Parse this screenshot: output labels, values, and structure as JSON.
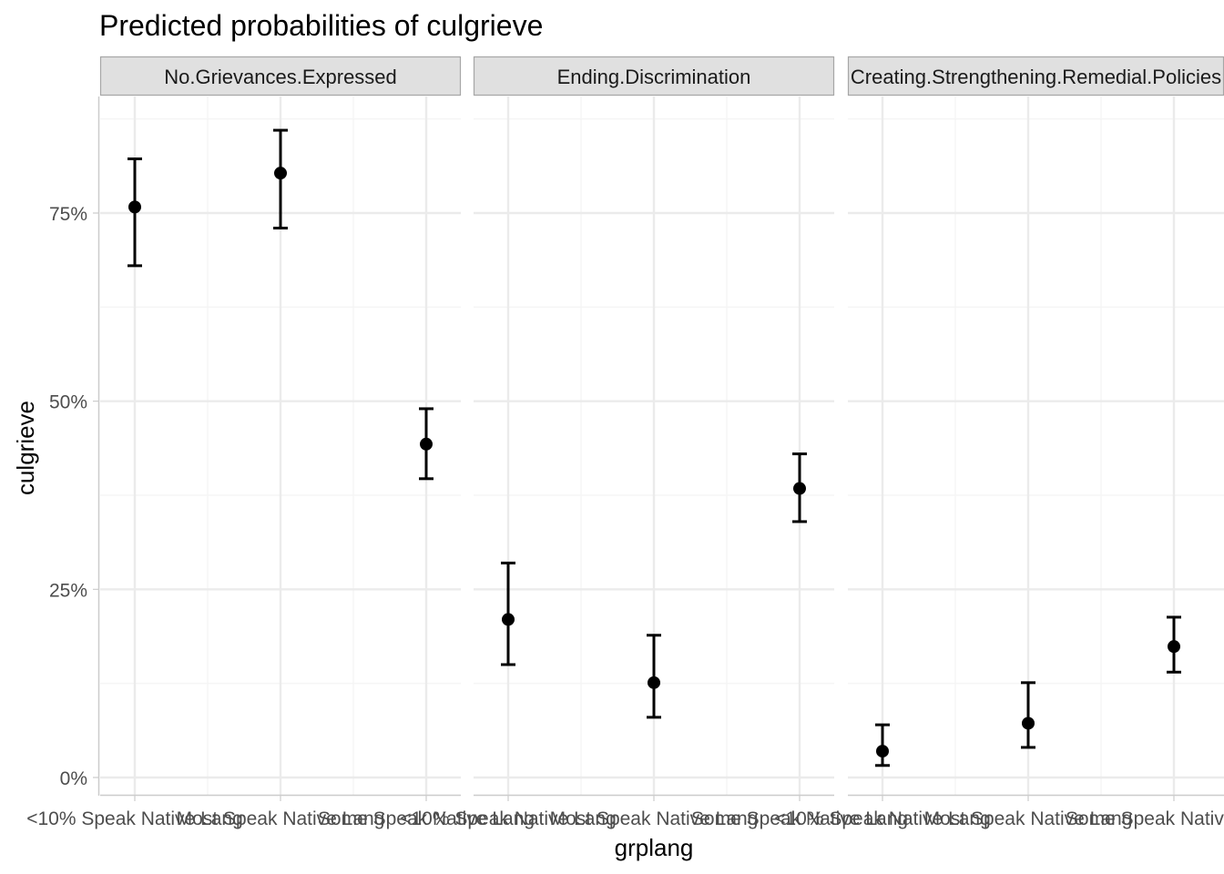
{
  "chart_data": {
    "type": "scatter",
    "title": "Predicted probabilities of culgrieve",
    "xlabel": "grplang",
    "ylabel": "culgrieve",
    "ylim": [
      0,
      0.9
    ],
    "y_ticks": [
      0,
      0.25,
      0.5,
      0.75
    ],
    "y_tick_labels": [
      "0%",
      "25%",
      "50%",
      "75%"
    ],
    "grid": true,
    "categories": [
      "<10% Speak Native Lang",
      "Most Speak Native Lang",
      "Some Speak Native Lang"
    ],
    "panels": [
      {
        "label": "No.Grievances.Expressed",
        "points": [
          {
            "x": "<10% Speak Native Lang",
            "y": 0.758,
            "ymin": 0.68,
            "ymax": 0.822
          },
          {
            "x": "Most Speak Native Lang",
            "y": 0.803,
            "ymin": 0.73,
            "ymax": 0.86
          },
          {
            "x": "Some Speak Native Lang",
            "y": 0.443,
            "ymin": 0.397,
            "ymax": 0.49
          }
        ]
      },
      {
        "label": "Ending.Discrimination",
        "points": [
          {
            "x": "<10% Speak Native Lang",
            "y": 0.21,
            "ymin": 0.15,
            "ymax": 0.285
          },
          {
            "x": "Most Speak Native Lang",
            "y": 0.126,
            "ymin": 0.08,
            "ymax": 0.189
          },
          {
            "x": "Some Speak Native Lang",
            "y": 0.384,
            "ymin": 0.34,
            "ymax": 0.43
          }
        ]
      },
      {
        "label": "Creating.Strengthening.Remedial.Policies",
        "points": [
          {
            "x": "<10% Speak Native Lang",
            "y": 0.035,
            "ymin": 0.016,
            "ymax": 0.07
          },
          {
            "x": "Most Speak Native Lang",
            "y": 0.072,
            "ymin": 0.04,
            "ymax": 0.126
          },
          {
            "x": "Some Speak Native Lang",
            "y": 0.174,
            "ymin": 0.14,
            "ymax": 0.213
          }
        ]
      }
    ],
    "colors": {
      "point": "#000000",
      "grid_major": "#ebebeb",
      "grid_minor": "#f5f5f5",
      "strip_fill": "#e0e0e0",
      "strip_border": "#a6a6a6",
      "axis_line": "#cccccc"
    }
  }
}
